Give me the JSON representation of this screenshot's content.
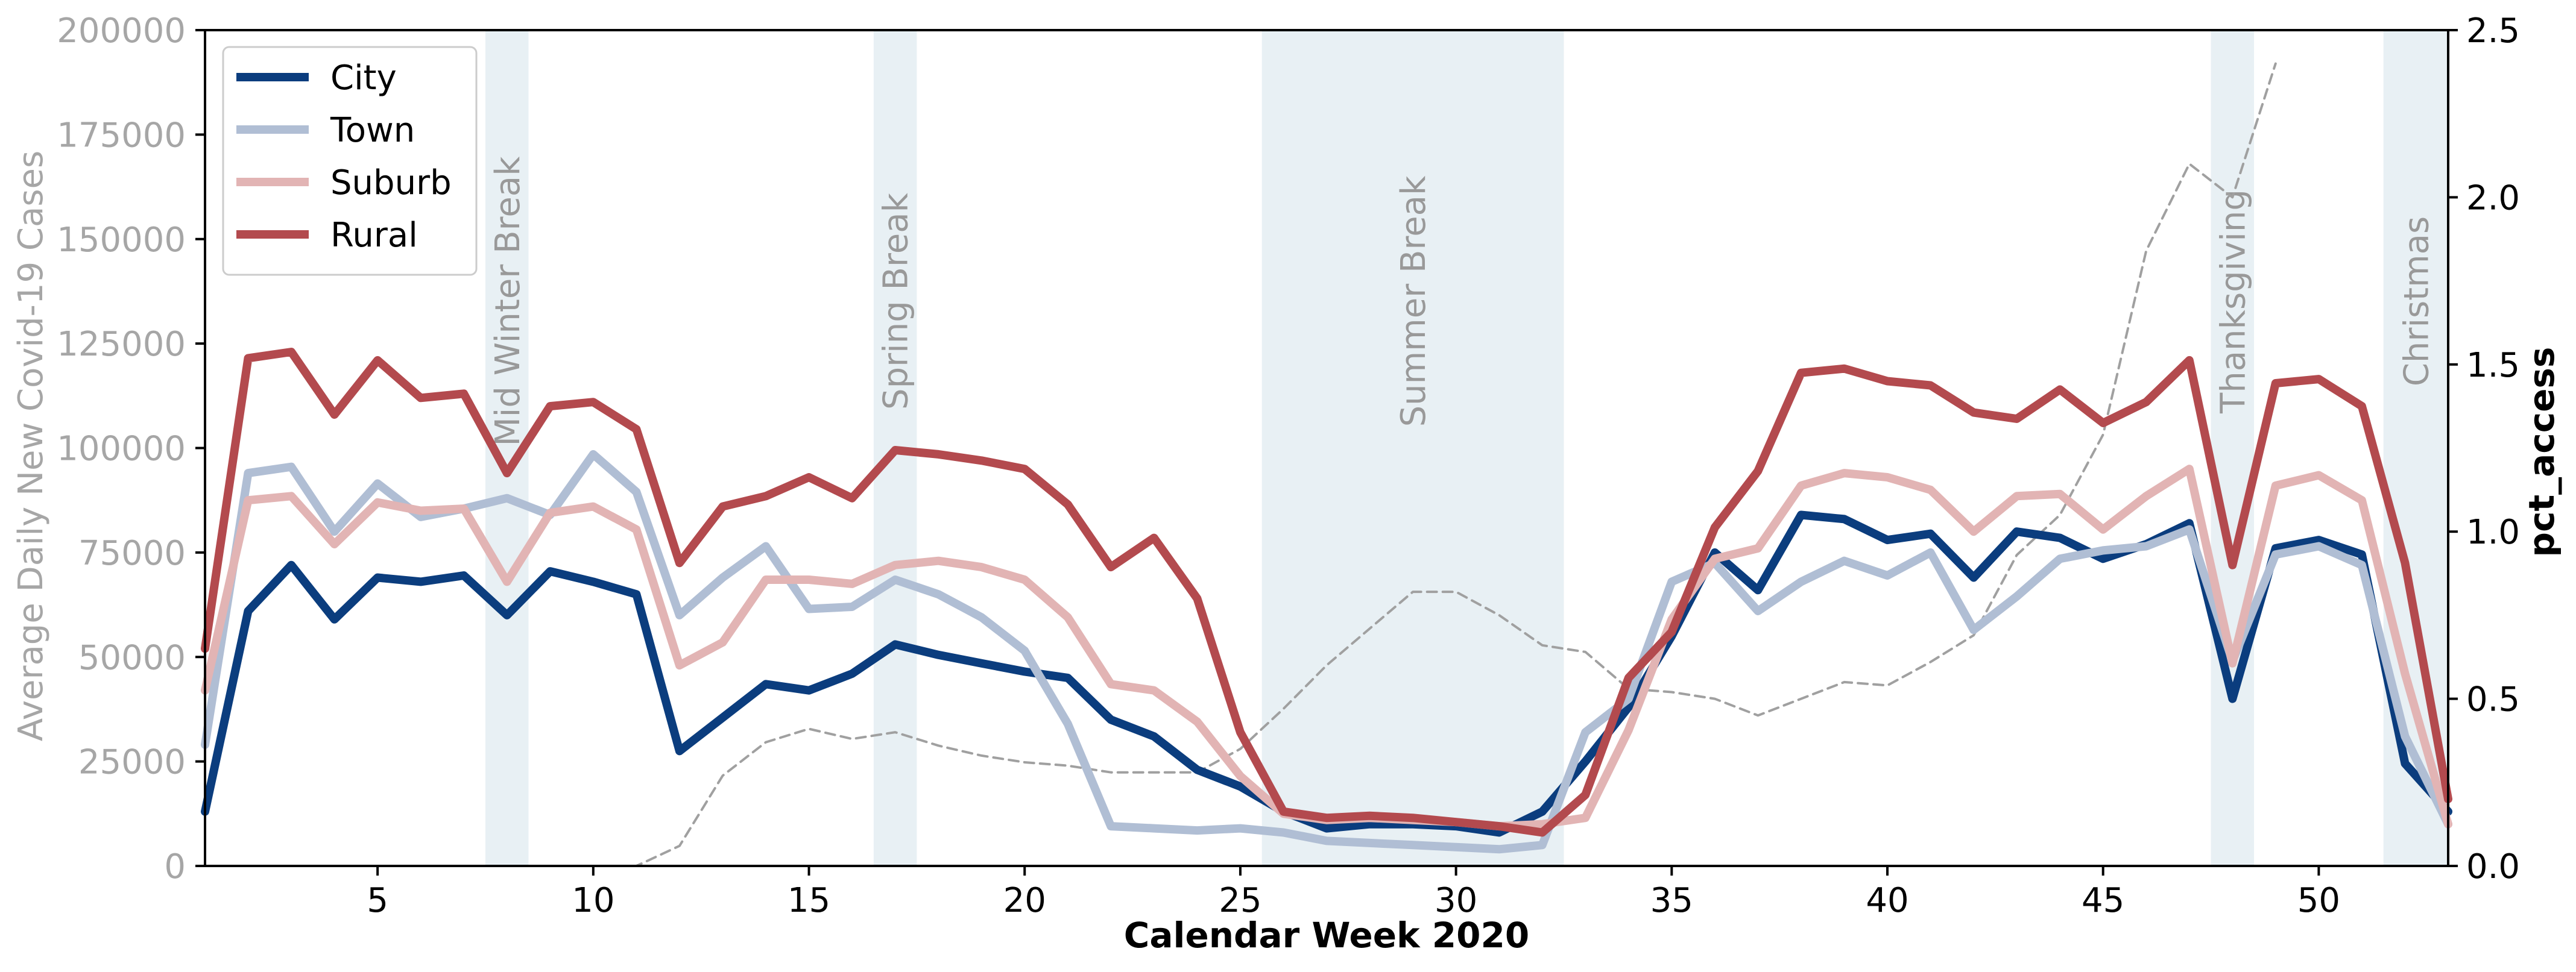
{
  "chart_data": {
    "type": "line",
    "xlabel": "Calendar Week 2020",
    "ylabel": "Average Daily New Covid-19 Cases",
    "y2label": "pct_access",
    "xlim": [
      1,
      53
    ],
    "ylim": [
      0,
      200000
    ],
    "y2lim": [
      0,
      2.5
    ],
    "xticks": [
      5,
      10,
      15,
      20,
      25,
      30,
      35,
      40,
      45,
      50
    ],
    "yticks": [
      0,
      25000,
      50000,
      75000,
      100000,
      125000,
      150000,
      175000,
      200000
    ],
    "y2ticks": [
      "0.0",
      "0.5",
      "1.0",
      "1.5",
      "2.0",
      "2.5"
    ],
    "legend_position": "top-left",
    "grid": false,
    "x": [
      1,
      2,
      3,
      4,
      5,
      6,
      7,
      8,
      9,
      10,
      11,
      12,
      13,
      14,
      15,
      16,
      17,
      18,
      19,
      20,
      21,
      22,
      23,
      24,
      25,
      26,
      27,
      28,
      29,
      30,
      31,
      32,
      33,
      34,
      35,
      36,
      37,
      38,
      39,
      40,
      41,
      42,
      43,
      44,
      45,
      46,
      47,
      48,
      49,
      50,
      51,
      52,
      53
    ],
    "series": [
      {
        "name": "City",
        "color": "#0b3d7e",
        "axis": "left",
        "values": [
          13000,
          61000,
          72000,
          59000,
          69000,
          68000,
          69500,
          60000,
          70500,
          68000,
          65000,
          27500,
          35500,
          43500,
          42000,
          46000,
          53000,
          50500,
          48500,
          46500,
          45000,
          35000,
          31000,
          23000,
          19000,
          13000,
          9000,
          10000,
          10000,
          9500,
          8000,
          13000,
          25000,
          38000,
          55000,
          75000,
          66000,
          84000,
          83000,
          78000,
          79500,
          69000,
          80000,
          78500,
          73500,
          77000,
          82000,
          40000,
          76000,
          78000,
          74500,
          24500,
          13000
        ]
      },
      {
        "name": "Town",
        "color": "#b0bed4",
        "axis": "left",
        "values": [
          29000,
          94000,
          95500,
          80000,
          91500,
          83500,
          85500,
          88000,
          84000,
          98500,
          89500,
          60000,
          69000,
          76500,
          61500,
          62000,
          68500,
          65000,
          59500,
          51500,
          34000,
          9500,
          9000,
          8500,
          9000,
          8000,
          6000,
          5500,
          5000,
          4500,
          4000,
          5000,
          32000,
          40000,
          68000,
          72500,
          61000,
          68000,
          73000,
          69500,
          75000,
          56500,
          64500,
          73500,
          75500,
          76500,
          80500,
          49000,
          74500,
          76500,
          72000,
          31000,
          10000
        ]
      },
      {
        "name": "Suburb",
        "color": "#e2b4b4",
        "axis": "left",
        "values": [
          42000,
          87500,
          88500,
          77000,
          87000,
          85000,
          85500,
          68000,
          84500,
          86000,
          80500,
          48000,
          53500,
          68500,
          68500,
          67500,
          72000,
          73000,
          71500,
          68500,
          59500,
          43500,
          42000,
          34500,
          21500,
          12500,
          11000,
          11500,
          11000,
          10500,
          9500,
          10000,
          11500,
          32500,
          59000,
          73500,
          76000,
          91000,
          94000,
          93000,
          90000,
          80000,
          88500,
          89000,
          80500,
          88500,
          95000,
          48500,
          91000,
          93500,
          87500,
          46000,
          10000
        ]
      },
      {
        "name": "Rural",
        "color": "#b34a4e",
        "axis": "left",
        "values": [
          52000,
          121500,
          123000,
          108000,
          121000,
          112000,
          113000,
          94000,
          110000,
          111000,
          104500,
          72500,
          86000,
          88500,
          93000,
          88000,
          99500,
          98500,
          97000,
          95000,
          86500,
          71500,
          78500,
          64000,
          32000,
          13000,
          11500,
          12000,
          11500,
          10500,
          9500,
          8000,
          17000,
          45000,
          56000,
          81000,
          94500,
          118000,
          119000,
          116000,
          115000,
          108500,
          107000,
          114000,
          106000,
          111000,
          121000,
          72000,
          115500,
          116500,
          110000,
          72500,
          16000
        ]
      },
      {
        "name": "pct_access",
        "color": "#a0a0a0",
        "axis": "right",
        "style": "dashed",
        "values": [
          null,
          null,
          null,
          0.0,
          0.0,
          0.0,
          0.0,
          0.0,
          0.0,
          0.0,
          0.0,
          0.06,
          0.27,
          0.37,
          0.41,
          0.38,
          0.4,
          0.36,
          0.33,
          0.31,
          0.3,
          0.28,
          0.28,
          0.28,
          0.35,
          0.47,
          0.6,
          0.71,
          0.82,
          0.82,
          0.75,
          0.66,
          0.64,
          0.53,
          0.52,
          0.5,
          0.45,
          0.5,
          0.55,
          0.54,
          0.61,
          0.69,
          0.93,
          1.05,
          1.29,
          1.84,
          2.1,
          2.0,
          2.4,
          null,
          null,
          null,
          null
        ]
      }
    ],
    "breaks": [
      {
        "label": "Mid Winter Break",
        "start": 7.5,
        "end": 8.5
      },
      {
        "label": "Spring Break",
        "start": 16.5,
        "end": 17.5
      },
      {
        "label": "Summer Break",
        "start": 25.5,
        "end": 32.5
      },
      {
        "label": "Thanksgiving",
        "start": 47.5,
        "end": 48.5
      },
      {
        "label": "Christmas",
        "start": 51.5,
        "end": 53
      }
    ],
    "colors": {
      "break_fill": "#e8f0f4",
      "break_text": "#999999",
      "left_axis_text": "#a6a6a6",
      "right_axis_text": "#000000"
    }
  }
}
